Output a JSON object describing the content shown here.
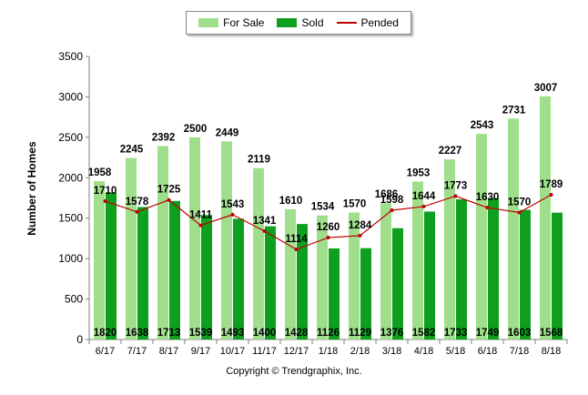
{
  "chart_data": {
    "type": "bar",
    "categories": [
      "6/17",
      "7/17",
      "8/17",
      "9/17",
      "10/17",
      "11/17",
      "12/17",
      "1/18",
      "2/18",
      "3/18",
      "4/18",
      "5/18",
      "6/18",
      "7/18",
      "8/18"
    ],
    "series": [
      {
        "name": "For Sale",
        "kind": "bar",
        "color": "#9fdf8c",
        "values": [
          1958,
          2245,
          2392,
          2500,
          2449,
          2119,
          1610,
          1534,
          1570,
          1686,
          1953,
          2227,
          2543,
          2731,
          3007
        ]
      },
      {
        "name": "Sold",
        "kind": "bar",
        "color": "#0e9f1f",
        "values": [
          1820,
          1638,
          1713,
          1539,
          1493,
          1400,
          1428,
          1126,
          1129,
          1376,
          1582,
          1733,
          1749,
          1603,
          1568
        ]
      },
      {
        "name": "Pended",
        "kind": "line",
        "color": "#c00000",
        "values": [
          1710,
          1578,
          1725,
          1411,
          1543,
          1341,
          1114,
          1260,
          1284,
          1598,
          1644,
          1773,
          1630,
          1570,
          1789
        ]
      }
    ],
    "ylabel": "Number of Homes",
    "ylim": [
      0,
      3500
    ],
    "yticks": [
      0,
      500,
      1000,
      1500,
      2000,
      2500,
      3000,
      3500
    ],
    "grid": false,
    "legend_position": "top-center"
  },
  "legend": {
    "for_sale": "For Sale",
    "sold": "Sold",
    "pended": "Pended"
  },
  "footer": {
    "copyright": "Copyright © Trendgraphix, Inc."
  }
}
